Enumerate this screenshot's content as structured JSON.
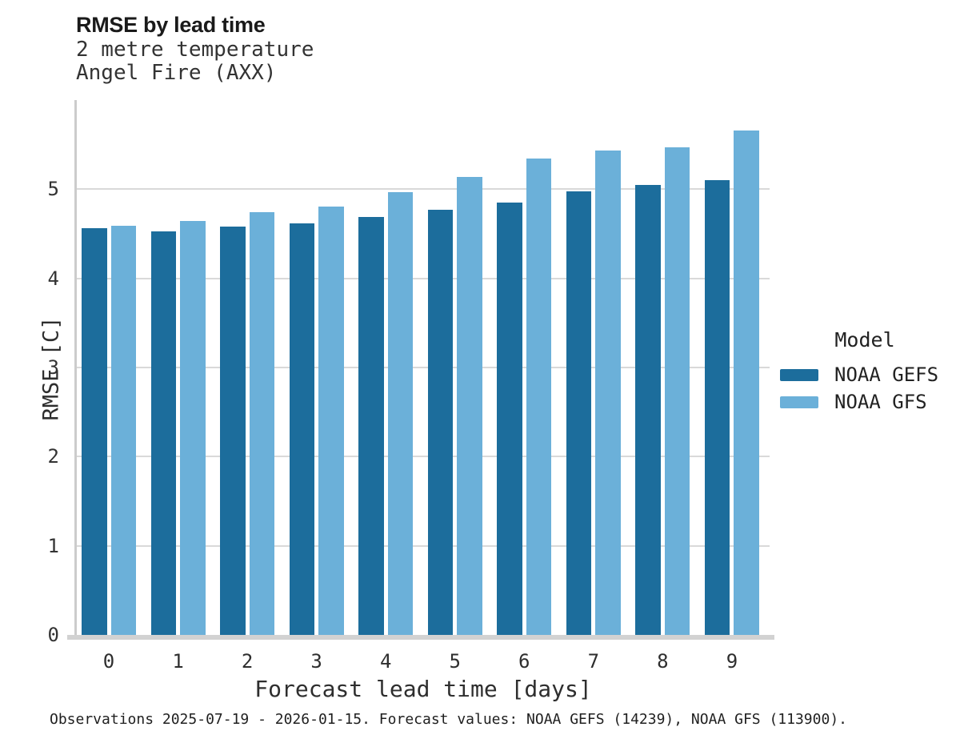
{
  "chart_data": {
    "type": "bar",
    "title": "RMSE by lead time",
    "subtitle1": "2 metre temperature",
    "subtitle2": "Angel Fire (AXX)",
    "categories": [
      "0",
      "1",
      "2",
      "3",
      "4",
      "5",
      "6",
      "7",
      "8",
      "9"
    ],
    "series": [
      {
        "name": "NOAA GEFS",
        "color": "#1c6d9c",
        "values": [
          4.56,
          4.53,
          4.58,
          4.62,
          4.69,
          4.77,
          4.85,
          4.98,
          5.05,
          5.1
        ]
      },
      {
        "name": "NOAA GFS",
        "color": "#6bb0d9",
        "values": [
          4.59,
          4.64,
          4.74,
          4.81,
          4.97,
          5.14,
          5.34,
          5.43,
          5.47,
          5.66
        ]
      }
    ],
    "xlabel": "Forecast lead time [days]",
    "ylabel": "RMSE [C]",
    "ylim": [
      0,
      6
    ],
    "yticks": [
      0,
      1,
      2,
      3,
      4,
      5
    ],
    "grid": "horizontal",
    "legend_title": "Model",
    "legend_position": "right"
  },
  "caption": "Observations 2025-07-19 - 2026-01-15. Forecast values: NOAA GEFS (14239), NOAA GFS (113900).",
  "colors": {
    "series_dark": "#1c6d9c",
    "series_light": "#6bb0d9",
    "gridline": "#d9d9d9",
    "axis_line": "#cccccc",
    "baseline": "#d2d2d2",
    "title_text": "#1a1a1a",
    "body_text": "#2e2e2e"
  }
}
